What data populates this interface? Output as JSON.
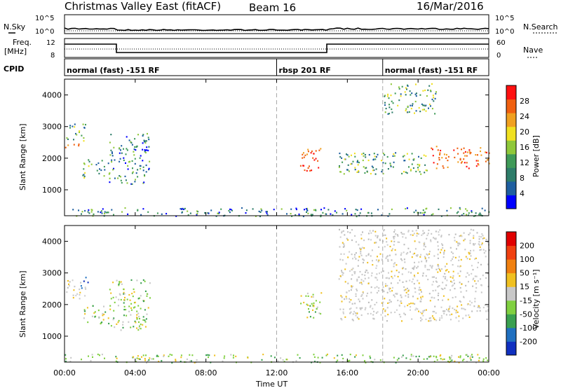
{
  "header": {
    "station": "Christmas Valley East (fitACF)",
    "beam": "Beam 16",
    "date": "16/Mar/2016"
  },
  "left_labels": {
    "nsky": "N.Sky",
    "freq": "Freq.",
    "freq_unit": "[MHz]",
    "cpid": "CPID"
  },
  "right_labels": {
    "nsearch": "N.Search",
    "nave": "Nave"
  },
  "aux_ticks": {
    "noise_left": [
      "10^5",
      "10^0"
    ],
    "noise_right": [
      "10^5",
      "10^0"
    ],
    "freq_left": [
      "12",
      "8"
    ],
    "freq_right": [
      "60",
      "0"
    ]
  },
  "cpid_segments": [
    {
      "label": "normal (fast) -151 RF",
      "start_h": 0
    },
    {
      "label": "rbsp 201 RF",
      "start_h": 12
    },
    {
      "label": "normal (fast) -151 RF",
      "start_h": 18
    }
  ],
  "colorbars": {
    "power": {
      "label": "Power [dB]",
      "ticks": [
        "28",
        "24",
        "20",
        "16",
        "12",
        "8",
        "4"
      ],
      "colors": [
        "#0000ff",
        "#1f5fa0",
        "#2e7d6a",
        "#3f9a58",
        "#8fc83a",
        "#f0e020",
        "#f0a020",
        "#f06010",
        "#ff1010"
      ]
    },
    "velocity": {
      "label": "Velocity [m s⁻¹]",
      "ticks": [
        "200",
        "100",
        "50",
        "15",
        "-15",
        "-50",
        "-100",
        "-200"
      ],
      "colors": [
        "#1030c0",
        "#2070c0",
        "#3aa050",
        "#80d040",
        "#c8c8c8",
        "#f0c020",
        "#f08010",
        "#f04010",
        "#e00000"
      ]
    }
  },
  "chart_data": [
    {
      "type": "heatmap",
      "name": "power",
      "ylabel": "Slant Range [km]",
      "x_ticks": [
        "00:00",
        "04:00",
        "08:00",
        "12:00",
        "16:00",
        "20:00",
        "00:00"
      ],
      "x_range_h": [
        0,
        24
      ],
      "y_ticks": [
        1000,
        2000,
        3000,
        4000
      ],
      "y_range_km": [
        180,
        4500
      ],
      "regions": [
        {
          "t0": 0.0,
          "t1": 1.0,
          "r0": 2300,
          "r1": 2500,
          "level": "high"
        },
        {
          "t0": 0.0,
          "t1": 1.2,
          "r0": 2500,
          "r1": 3100,
          "level": "mid"
        },
        {
          "t0": 1.0,
          "t1": 2.5,
          "r0": 1400,
          "r1": 2000,
          "level": "mid"
        },
        {
          "t0": 2.5,
          "t1": 4.8,
          "r0": 1200,
          "r1": 2800,
          "level": "low"
        },
        {
          "t0": 13.3,
          "t1": 14.5,
          "r0": 1600,
          "r1": 2400,
          "level": "high"
        },
        {
          "t0": 15.5,
          "t1": 20.5,
          "r0": 1500,
          "r1": 2200,
          "level": "mid"
        },
        {
          "t0": 18.0,
          "t1": 21.0,
          "r0": 3400,
          "r1": 4400,
          "level": "mid"
        },
        {
          "t0": 20.7,
          "t1": 24.0,
          "r0": 1700,
          "r1": 2400,
          "level": "high"
        },
        {
          "t0": 0.0,
          "t1": 24.0,
          "r0": 180,
          "r1": 450,
          "level": "low"
        }
      ]
    },
    {
      "type": "heatmap",
      "name": "velocity",
      "ylabel": "Slant Range [km]",
      "xlabel": "Time UT",
      "x_ticks": [
        "00:00",
        "04:00",
        "08:00",
        "12:00",
        "16:00",
        "20:00",
        "00:00"
      ],
      "x_range_h": [
        0,
        24
      ],
      "y_ticks": [
        1000,
        2000,
        3000,
        4000
      ],
      "y_range_km": [
        180,
        4500
      ],
      "regions": [
        {
          "t0": 0.0,
          "t1": 1.2,
          "r0": 2200,
          "r1": 2800,
          "level": "gray"
        },
        {
          "t0": 0.9,
          "t1": 1.3,
          "r0": 2500,
          "r1": 2900,
          "level": "blue"
        },
        {
          "t0": 1.0,
          "t1": 2.5,
          "r0": 1400,
          "r1": 2000,
          "level": "green"
        },
        {
          "t0": 2.5,
          "t1": 4.8,
          "r0": 1200,
          "r1": 2800,
          "level": "green"
        },
        {
          "t0": 13.3,
          "t1": 14.5,
          "r0": 1600,
          "r1": 2400,
          "level": "green"
        },
        {
          "t0": 15.5,
          "t1": 24.0,
          "r0": 1500,
          "r1": 4400,
          "level": "gray"
        },
        {
          "t0": 0.0,
          "t1": 24.0,
          "r0": 180,
          "r1": 450,
          "level": "green"
        }
      ]
    }
  ]
}
